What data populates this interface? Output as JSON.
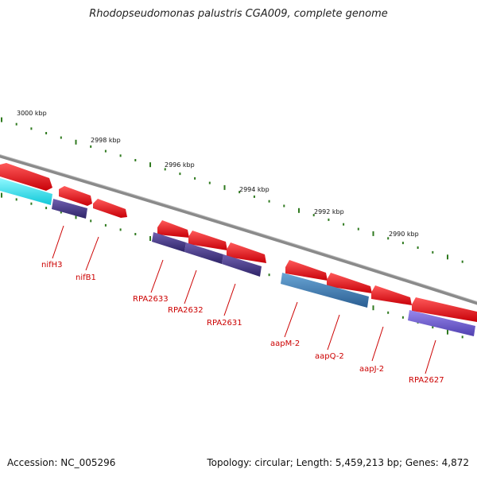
{
  "title": "Rhodopseudomonas palustris CGA009, complete genome",
  "footer": {
    "accession": "Accession: NC_005296",
    "summary": "Topology: circular; Length: 5,459,213 bp; Genes: 4,872"
  },
  "ruler_labels": [
    "3000 kbp",
    "2998 kbp",
    "2996 kbp",
    "2994 kbp",
    "2992 kbp",
    "2990 kbp"
  ],
  "gene_labels": [
    "nifH3",
    "nifB1",
    "RPA2633",
    "RPA2632",
    "RPA2631",
    "aapM-2",
    "aapQ-2",
    "aapJ-2",
    "RPA2627"
  ],
  "colors": {
    "backbone": "#8a8a8a",
    "tick": "#2f7a1f",
    "feature_red": "#e8141a",
    "feature_cyan": "#1ee6ee",
    "feature_purple": "#4a3a8c",
    "feature_steelblue": "#3f7fb8",
    "feature_violet": "#6a5acd",
    "gene_label": "#cc0000"
  }
}
